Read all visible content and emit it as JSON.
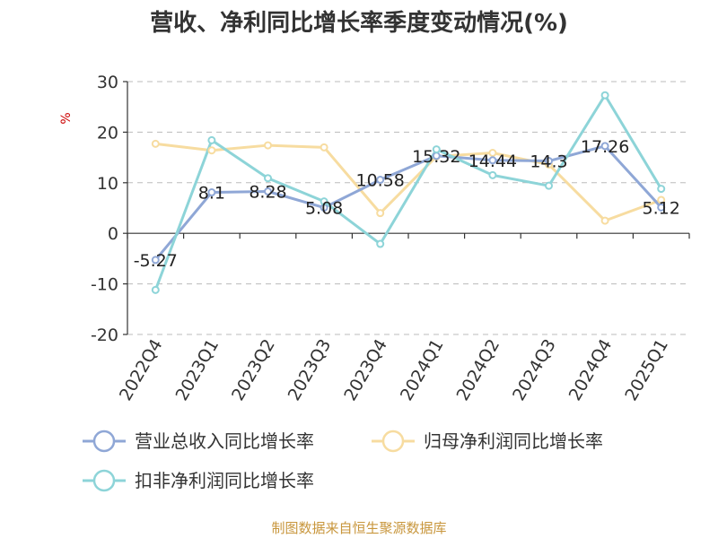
{
  "chart_data": {
    "type": "line",
    "title": "营收、净利同比增长率季度变动情况(%)",
    "ylabel": "%",
    "xlabel": "",
    "categories": [
      "2022Q4",
      "2023Q1",
      "2023Q2",
      "2023Q3",
      "2023Q4",
      "2024Q1",
      "2024Q2",
      "2024Q3",
      "2024Q4",
      "2025Q1"
    ],
    "ylim": [
      -20,
      30
    ],
    "yticks": [
      30,
      20,
      10,
      0,
      -10,
      -20
    ],
    "grid": "horizontal-dashed",
    "legend_position": "bottom",
    "series": [
      {
        "name": "营业总收入同比增长率",
        "color": "#8fa7d6",
        "values": [
          -5.27,
          8.1,
          8.28,
          5.08,
          10.58,
          15.32,
          14.44,
          14.3,
          17.26,
          5.12
        ],
        "labels": [
          "-5.27",
          "8.1",
          "8.28",
          "5.08",
          "10.58",
          "15.32",
          "14.44",
          "14.3",
          "17.26",
          "5.12"
        ]
      },
      {
        "name": "归母净利润同比增长率",
        "color": "#f7dca0",
        "values": [
          17.7,
          16.4,
          17.4,
          17.0,
          4.0,
          15.2,
          15.9,
          13.6,
          2.5,
          6.6
        ]
      },
      {
        "name": "扣非净利润同比增长率",
        "color": "#8dd4d8",
        "values": [
          -11.2,
          18.4,
          10.9,
          6.3,
          -2.1,
          16.6,
          11.5,
          9.4,
          27.3,
          8.8
        ]
      }
    ]
  },
  "footer": {
    "source": "制图数据来自恒生聚源数据库"
  }
}
